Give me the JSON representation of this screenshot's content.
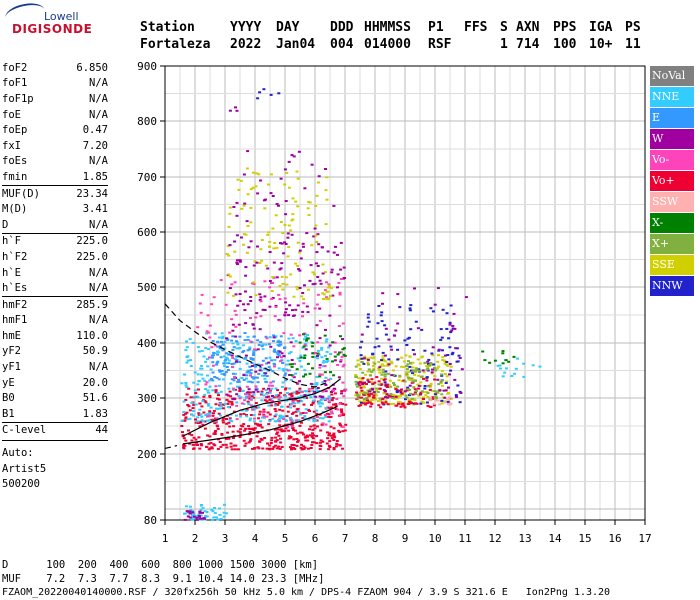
{
  "logo": {
    "line1": "Lowell",
    "line2": "DIGISONDE"
  },
  "header": {
    "cols": [
      "Station",
      "YYYY",
      "DAY",
      "DDD",
      "HHMMSS",
      "P1",
      "FFS",
      "S",
      "AXN",
      "PPS",
      "IGA",
      "PS"
    ],
    "vals": [
      "Fortaleza",
      "2022",
      "Jan04",
      "004",
      "014000",
      "RSF",
      "",
      "1",
      "714",
      "100",
      "10+",
      "11"
    ]
  },
  "params": [
    {
      "label": "foF2",
      "value": "6.850"
    },
    {
      "label": "foF1",
      "value": "N/A"
    },
    {
      "label": "foF1p",
      "value": "N/A"
    },
    {
      "label": "foE",
      "value": "N/A"
    },
    {
      "label": "foEp",
      "value": "0.47"
    },
    {
      "label": "fxI",
      "value": "7.20"
    },
    {
      "label": "foEs",
      "value": "N/A"
    },
    {
      "label": "fmin",
      "value": "1.85"
    },
    {
      "label": "MUF(D)",
      "value": "23.34",
      "sep": true
    },
    {
      "label": "M(D)",
      "value": "3.41"
    },
    {
      "label": "D",
      "value": "N/A"
    },
    {
      "label": "h`F",
      "value": "225.0",
      "sep": true
    },
    {
      "label": "h`F2",
      "value": "225.0"
    },
    {
      "label": "h`E",
      "value": "N/A"
    },
    {
      "label": "h`Es",
      "value": "N/A"
    },
    {
      "label": "hmF2",
      "value": "285.9",
      "sep": true
    },
    {
      "label": "hmF1",
      "value": "N/A"
    },
    {
      "label": "hmE",
      "value": "110.0"
    },
    {
      "label": "yF2",
      "value": "50.9"
    },
    {
      "label": "yF1",
      "value": "N/A"
    },
    {
      "label": "yE",
      "value": "20.0"
    },
    {
      "label": "B0",
      "value": "51.6"
    },
    {
      "label": "B1",
      "value": "1.83"
    },
    {
      "label": "C-level",
      "value": "44",
      "sep": true
    }
  ],
  "auto": {
    "line1": "Auto:",
    "line2": "Artist5",
    "line3": "500200"
  },
  "footer": {
    "d_row": "D      100  200  400  600  800 1000 1500 3000 [km]",
    "muf_row": "MUF    7.2  7.3  7.7  8.3  9.1 10.4 14.0 23.3 [MHz]",
    "file_row": "FZAOM_20220040140000.RSF / 320fx256h 50 kHz 5.0 km / DPS-4 FZAOM 904 / 3.9 S 321.6 E   Ion2Png 1.3.20"
  },
  "legend": [
    {
      "label": "NoVal",
      "color": "#808080"
    },
    {
      "label": "NNE",
      "color": "#33ccff"
    },
    {
      "label": "E",
      "color": "#3399ff"
    },
    {
      "label": "W",
      "color": "#a000a0"
    },
    {
      "label": "Vo-",
      "color": "#ff44bb"
    },
    {
      "label": "Vo+",
      "color": "#ee0033"
    },
    {
      "label": "SSW",
      "color": "#ffb0b0"
    },
    {
      "label": "X-",
      "color": "#008000"
    },
    {
      "label": "X+",
      "color": "#80b040"
    },
    {
      "label": "SSE",
      "color": "#d0d000"
    },
    {
      "label": "NNW",
      "color": "#2222cc"
    }
  ],
  "chart_data": {
    "type": "scatter",
    "title": "",
    "xlabel": "",
    "ylabel": "",
    "xlim": [
      1,
      17
    ],
    "ylim": [
      80,
      900
    ],
    "xticks": [
      1,
      2,
      3,
      4,
      5,
      6,
      7,
      8,
      9,
      10,
      11,
      12,
      13,
      14,
      15,
      16,
      17
    ],
    "yticks": [
      80,
      200,
      300,
      400,
      500,
      600,
      700,
      800,
      900
    ],
    "grid": true,
    "legend_position": "right",
    "traces": [
      {
        "style": "solid",
        "x": [
          1.6,
          2.5,
          3.5,
          4.5,
          5.5,
          6.2,
          6.75
        ],
        "y": [
          218,
          225,
          233,
          243,
          258,
          272,
          285
        ]
      },
      {
        "style": "solid",
        "x": [
          1.6,
          2.5,
          3.5,
          4.3,
          5.0,
          5.5,
          6.0,
          6.5,
          6.85
        ],
        "y": [
          232,
          256,
          278,
          290,
          296,
          300,
          308,
          320,
          335
        ]
      },
      {
        "style": "dashed",
        "x": [
          1.0,
          1.5,
          2.0,
          2.5,
          3.0,
          3.5,
          4.0,
          4.5,
          5.0,
          5.5,
          6.0,
          6.5
        ],
        "y": [
          470,
          440,
          420,
          402,
          388,
          375,
          362,
          350,
          336,
          325,
          320,
          330
        ]
      },
      {
        "style": "dashed",
        "x": [
          1.0,
          1.4
        ],
        "y": [
          210,
          215
        ]
      }
    ],
    "clusters": [
      {
        "color": "#ee0033",
        "x": [
          1.5,
          7.0
        ],
        "y": [
          210,
          320
        ],
        "n": 500
      },
      {
        "color": "#33ccff",
        "x": [
          1.5,
          6.5
        ],
        "y": [
          260,
          420
        ],
        "n": 350
      },
      {
        "color": "#3399ff",
        "x": [
          2.5,
          5.0
        ],
        "y": [
          330,
          420
        ],
        "n": 150
      },
      {
        "color": "#a000a0",
        "x": [
          3.0,
          7.0
        ],
        "y": [
          300,
          600
        ],
        "n": 150
      },
      {
        "color": "#ff44bb",
        "x": [
          2.0,
          7.0
        ],
        "y": [
          250,
          520
        ],
        "n": 160
      },
      {
        "color": "#d0d000",
        "x": [
          3.0,
          6.5
        ],
        "y": [
          480,
          720
        ],
        "n": 120
      },
      {
        "color": "#a000a0",
        "x": [
          3.0,
          6.8
        ],
        "y": [
          450,
          750
        ],
        "n": 70
      },
      {
        "color": "#d0d000",
        "x": [
          7.3,
          10.5
        ],
        "y": [
          290,
          380
        ],
        "n": 220
      },
      {
        "color": "#2222cc",
        "x": [
          7.3,
          10.8
        ],
        "y": [
          290,
          470
        ],
        "n": 120
      },
      {
        "color": "#ee0033",
        "x": [
          7.3,
          10.0
        ],
        "y": [
          285,
          340
        ],
        "n": 100
      },
      {
        "color": "#80b040",
        "x": [
          7.3,
          10.2
        ],
        "y": [
          300,
          370
        ],
        "n": 100
      },
      {
        "color": "#a000a0",
        "x": [
          7.5,
          11.0
        ],
        "y": [
          300,
          500
        ],
        "n": 60
      },
      {
        "color": "#ffb0b0",
        "x": [
          9.8,
          10.5
        ],
        "y": [
          290,
          310
        ],
        "n": 15
      },
      {
        "color": "#33ccff",
        "x": [
          1.6,
          3.0
        ],
        "y": [
          82,
          110
        ],
        "n": 50
      },
      {
        "color": "#a000a0",
        "x": [
          1.6,
          2.3
        ],
        "y": [
          82,
          100
        ],
        "n": 20
      },
      {
        "color": "#33ccff",
        "x": [
          12.0,
          13.5
        ],
        "y": [
          340,
          380
        ],
        "n": 15
      },
      {
        "color": "#008000",
        "x": [
          11.5,
          12.8
        ],
        "y": [
          360,
          390
        ],
        "n": 10
      },
      {
        "color": "#2222cc",
        "x": [
          4.0,
          5.0
        ],
        "y": [
          840,
          860
        ],
        "n": 5
      },
      {
        "color": "#a000a0",
        "x": [
          3.0,
          3.4
        ],
        "y": [
          820,
          830
        ],
        "n": 3
      },
      {
        "color": "#008000",
        "x": [
          5.0,
          7.0
        ],
        "y": [
          340,
          420
        ],
        "n": 40
      }
    ]
  }
}
